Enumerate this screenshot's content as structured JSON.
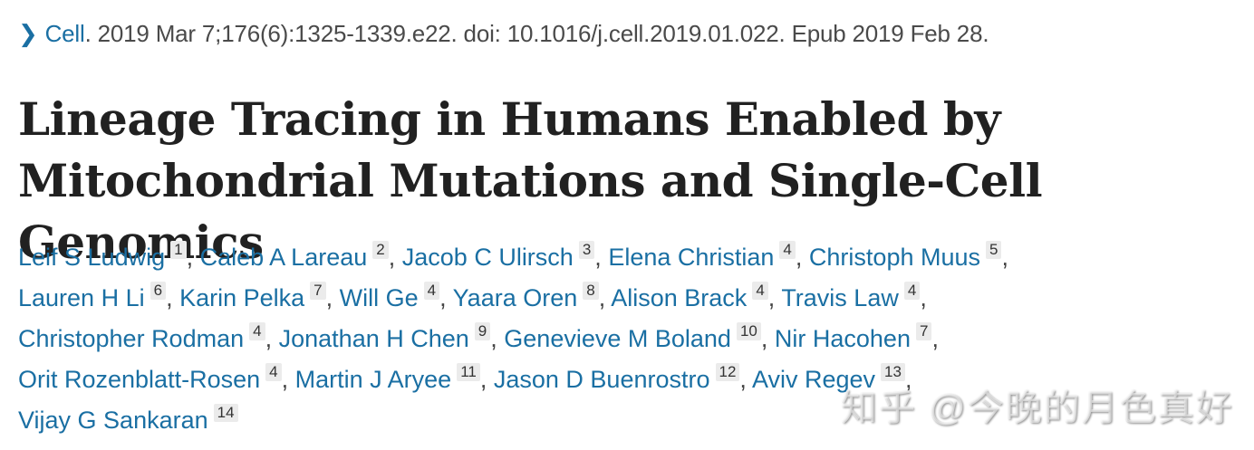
{
  "citation": {
    "chevron_icon": "chevron-right-icon",
    "journal": "Cell",
    "details": ". 2019 Mar 7;176(6):1325-1339.e22. doi: 10.1016/j.cell.2019.01.022. Epub 2019 Feb 28."
  },
  "title": "Lineage Tracing in Humans Enabled by Mitochondrial Mutations and Single-Cell Genomics",
  "authors": [
    {
      "name": "Leif S Ludwig",
      "aff": "1"
    },
    {
      "name": "Caleb A Lareau",
      "aff": "2"
    },
    {
      "name": "Jacob C Ulirsch",
      "aff": "3"
    },
    {
      "name": "Elena Christian",
      "aff": "4"
    },
    {
      "name": "Christoph Muus",
      "aff": "5"
    },
    {
      "name": "Lauren H Li",
      "aff": "6"
    },
    {
      "name": "Karin Pelka",
      "aff": "7"
    },
    {
      "name": "Will Ge",
      "aff": "4"
    },
    {
      "name": "Yaara Oren",
      "aff": "8"
    },
    {
      "name": "Alison Brack",
      "aff": "4"
    },
    {
      "name": "Travis Law",
      "aff": "4"
    },
    {
      "name": "Christopher Rodman",
      "aff": "4"
    },
    {
      "name": "Jonathan H Chen",
      "aff": "9"
    },
    {
      "name": "Genevieve M Boland",
      "aff": "10"
    },
    {
      "name": "Nir Hacohen",
      "aff": "7"
    },
    {
      "name": "Orit Rozenblatt-Rosen",
      "aff": "4"
    },
    {
      "name": "Martin J Aryee",
      "aff": "11"
    },
    {
      "name": "Jason D Buenrostro",
      "aff": "12"
    },
    {
      "name": "Aviv Regev",
      "aff": "13"
    },
    {
      "name": "Vijay G Sankaran",
      "aff": "14"
    }
  ],
  "separator": ",",
  "watermark": "知乎 @今晚的月色真好"
}
